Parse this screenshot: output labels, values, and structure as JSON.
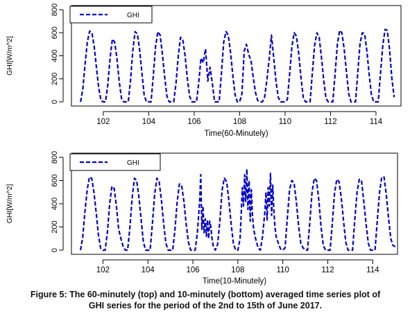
{
  "chart_data": [
    {
      "type": "line",
      "xlabel": "Time(60-Minutely)",
      "ylabel": "GHI[W/m^2]",
      "xlim": [
        100.6,
        115.1
      ],
      "ylim": [
        0,
        800
      ],
      "xticks": [
        102,
        104,
        106,
        108,
        110,
        112,
        114
      ],
      "yticks": [
        0,
        200,
        400,
        600,
        800
      ],
      "legend_position": "top-left",
      "grid": false,
      "series": [
        {
          "name": "GHI",
          "color": "#0000cc",
          "dash": "dashed",
          "x": [
            101.0,
            101.1,
            101.2,
            101.3,
            101.4,
            101.5,
            101.6,
            101.7,
            101.8,
            101.9,
            102.0,
            102.1,
            102.2,
            102.3,
            102.4,
            102.5,
            102.6,
            102.7,
            102.8,
            102.9,
            103.0,
            103.1,
            103.2,
            103.3,
            103.4,
            103.5,
            103.6,
            103.7,
            103.8,
            103.9,
            104.0,
            104.1,
            104.2,
            104.3,
            104.4,
            104.5,
            104.6,
            104.7,
            104.8,
            104.9,
            105.0,
            105.1,
            105.2,
            105.3,
            105.4,
            105.5,
            105.6,
            105.7,
            105.8,
            105.9,
            106.0,
            106.1,
            106.2,
            106.3,
            106.4,
            106.5,
            106.6,
            106.7,
            106.8,
            106.9,
            107.0,
            107.1,
            107.2,
            107.3,
            107.4,
            107.5,
            107.6,
            107.7,
            107.8,
            107.9,
            108.0,
            108.1,
            108.2,
            108.3,
            108.4,
            108.5,
            108.6,
            108.7,
            108.8,
            108.9,
            109.0,
            109.1,
            109.2,
            109.3,
            109.4,
            109.5,
            109.6,
            109.7,
            109.8,
            109.9,
            110.0,
            110.1,
            110.2,
            110.3,
            110.4,
            110.5,
            110.6,
            110.7,
            110.8,
            110.9,
            111.0,
            111.1,
            111.2,
            111.3,
            111.4,
            111.5,
            111.6,
            111.7,
            111.8,
            111.9,
            112.0,
            112.1,
            112.2,
            112.3,
            112.4,
            112.5,
            112.6,
            112.7,
            112.8,
            112.9,
            113.0,
            113.1,
            113.2,
            113.3,
            113.4,
            113.5,
            113.6,
            113.7,
            113.8,
            113.9,
            114.0,
            114.1,
            114.2,
            114.3,
            114.4,
            114.5,
            114.6,
            114.7,
            114.8
          ],
          "y": [
            0,
            110,
            330,
            520,
            615,
            600,
            480,
            300,
            120,
            10,
            0,
            0,
            150,
            380,
            545,
            520,
            380,
            180,
            30,
            0,
            0,
            0,
            190,
            440,
            610,
            590,
            450,
            250,
            60,
            0,
            0,
            0,
            220,
            480,
            610,
            580,
            420,
            220,
            50,
            0,
            0,
            0,
            160,
            400,
            560,
            540,
            400,
            200,
            50,
            0,
            0,
            0,
            160,
            380,
            340,
            460,
            180,
            300,
            160,
            0,
            0,
            0,
            250,
            520,
            610,
            580,
            430,
            230,
            60,
            0,
            0,
            70,
            440,
            500,
            410,
            360,
            210,
            80,
            10,
            0,
            0,
            40,
            190,
            370,
            580,
            380,
            180,
            40,
            0,
            0,
            0,
            20,
            240,
            480,
            600,
            570,
            420,
            210,
            40,
            0,
            0,
            0,
            250,
            490,
            600,
            560,
            390,
            190,
            30,
            0,
            0,
            0,
            240,
            500,
            620,
            600,
            460,
            260,
            70,
            0,
            0,
            0,
            260,
            510,
            600,
            590,
            440,
            240,
            60,
            0,
            0,
            0,
            250,
            490,
            630,
            620,
            450,
            200,
            40
          ]
        }
      ]
    },
    {
      "type": "line",
      "xlabel": "Time(10-Minutely)",
      "ylabel": "GHI[W/m^2]",
      "xlim": [
        100.6,
        115.1
      ],
      "ylim": [
        0,
        800
      ],
      "xticks": [
        102,
        104,
        106,
        108,
        110,
        112,
        114
      ],
      "yticks": [
        0,
        200,
        400,
        600,
        800
      ],
      "legend_position": "top-left",
      "grid": false,
      "series": [
        {
          "name": "GHI",
          "color": "#0000cc",
          "dash": "dashed",
          "x": [
            101.0,
            101.1,
            101.2,
            101.3,
            101.4,
            101.5,
            101.6,
            101.7,
            101.8,
            101.9,
            102.0,
            102.1,
            102.2,
            102.3,
            102.4,
            102.5,
            102.6,
            102.7,
            102.8,
            102.9,
            103.0,
            103.1,
            103.2,
            103.3,
            103.4,
            103.5,
            103.6,
            103.7,
            103.8,
            103.9,
            104.0,
            104.1,
            104.2,
            104.3,
            104.4,
            104.5,
            104.6,
            104.7,
            104.8,
            104.9,
            105.0,
            105.1,
            105.2,
            105.3,
            105.4,
            105.5,
            105.6,
            105.7,
            105.8,
            105.9,
            106.0,
            106.1,
            106.2,
            106.3,
            106.35,
            106.4,
            106.45,
            106.5,
            106.55,
            106.6,
            106.65,
            106.7,
            106.75,
            106.8,
            106.85,
            106.9,
            107.0,
            107.1,
            107.2,
            107.3,
            107.4,
            107.5,
            107.6,
            107.7,
            107.8,
            107.9,
            108.0,
            108.1,
            108.2,
            108.25,
            108.3,
            108.35,
            108.4,
            108.45,
            108.5,
            108.55,
            108.6,
            108.65,
            108.7,
            108.8,
            108.9,
            109.0,
            109.1,
            109.2,
            109.25,
            109.3,
            109.35,
            109.4,
            109.45,
            109.5,
            109.55,
            109.6,
            109.65,
            109.7,
            109.8,
            109.9,
            110.0,
            110.1,
            110.2,
            110.3,
            110.4,
            110.5,
            110.6,
            110.7,
            110.8,
            110.9,
            111.0,
            111.1,
            111.2,
            111.3,
            111.4,
            111.5,
            111.6,
            111.7,
            111.8,
            111.9,
            112.0,
            112.1,
            112.2,
            112.3,
            112.4,
            112.5,
            112.6,
            112.7,
            112.8,
            112.9,
            113.0,
            113.1,
            113.2,
            113.3,
            113.4,
            113.5,
            113.6,
            113.7,
            113.8,
            113.9,
            114.0,
            114.1,
            114.2,
            114.3,
            114.4,
            114.5,
            114.6,
            114.7,
            114.8,
            114.9,
            115.0
          ],
          "y": [
            0,
            110,
            330,
            520,
            630,
            620,
            500,
            320,
            130,
            15,
            0,
            0,
            160,
            400,
            550,
            530,
            380,
            180,
            100,
            30,
            0,
            0,
            200,
            450,
            620,
            600,
            460,
            260,
            70,
            0,
            0,
            0,
            230,
            480,
            620,
            590,
            430,
            230,
            60,
            0,
            0,
            0,
            170,
            410,
            570,
            560,
            420,
            230,
            70,
            0,
            0,
            0,
            150,
            420,
            650,
            180,
            380,
            150,
            270,
            120,
            260,
            100,
            250,
            200,
            100,
            40,
            0,
            50,
            250,
            520,
            620,
            590,
            430,
            230,
            60,
            0,
            0,
            100,
            540,
            380,
            650,
            420,
            700,
            350,
            600,
            250,
            520,
            300,
            180,
            90,
            20,
            0,
            120,
            330,
            500,
            260,
            540,
            380,
            660,
            300,
            560,
            350,
            200,
            120,
            60,
            10,
            0,
            20,
            280,
            520,
            600,
            580,
            420,
            210,
            60,
            20,
            0,
            0,
            240,
            500,
            620,
            600,
            430,
            200,
            40,
            0,
            0,
            0,
            230,
            490,
            610,
            590,
            450,
            250,
            70,
            0,
            0,
            0,
            260,
            500,
            610,
            600,
            420,
            230,
            60,
            0,
            0,
            0,
            250,
            500,
            630,
            630,
            480,
            280,
            100,
            40,
            30
          ]
        }
      ]
    }
  ],
  "legend_label": "GHI",
  "caption": {
    "line1": "Figure 5: The 60-minutely (top) and 10-minutely (bottom) averaged time series plot of",
    "line2": "GHI series for the period of the 2nd to 15th of June 2017."
  }
}
